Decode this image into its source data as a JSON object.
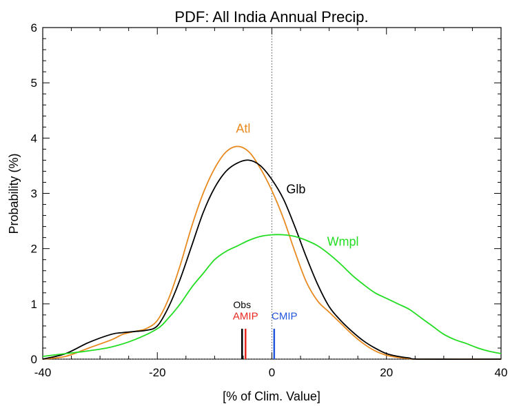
{
  "chart_data": {
    "type": "line",
    "title": "PDF: All India Annual Precip.",
    "xlabel": "[% of Clim. Value]",
    "ylabel": "Probability (%)",
    "xlim": [
      -40,
      40
    ],
    "ylim": [
      0,
      6
    ],
    "xticks": [
      -40,
      -20,
      0,
      20,
      40
    ],
    "yticks": [
      0,
      1,
      2,
      3,
      4,
      5,
      6
    ],
    "reference_lines": [
      {
        "axis": "x",
        "value": 0,
        "style": "dotted"
      },
      {
        "axis": "y",
        "value": 0,
        "style": "dotted"
      }
    ],
    "series": [
      {
        "name": "Atl",
        "color": "#e8891e",
        "label_at": [
          -5,
          4.1
        ],
        "points": [
          [
            -40,
            0.0
          ],
          [
            -36,
            0.05
          ],
          [
            -32,
            0.2
          ],
          [
            -28,
            0.35
          ],
          [
            -26,
            0.45
          ],
          [
            -24,
            0.5
          ],
          [
            -22,
            0.55
          ],
          [
            -20,
            0.7
          ],
          [
            -18,
            1.1
          ],
          [
            -16,
            1.7
          ],
          [
            -14,
            2.4
          ],
          [
            -12,
            3.0
          ],
          [
            -10,
            3.45
          ],
          [
            -8,
            3.75
          ],
          [
            -6,
            3.85
          ],
          [
            -4,
            3.75
          ],
          [
            -2,
            3.45
          ],
          [
            0,
            3.05
          ],
          [
            2,
            2.55
          ],
          [
            4,
            1.95
          ],
          [
            6,
            1.4
          ],
          [
            8,
            1.05
          ],
          [
            10,
            0.85
          ],
          [
            12,
            0.65
          ],
          [
            14,
            0.45
          ],
          [
            16,
            0.28
          ],
          [
            18,
            0.15
          ],
          [
            20,
            0.07
          ],
          [
            22,
            0.03
          ],
          [
            24,
            0.01
          ],
          [
            26,
            0.0
          ],
          [
            40,
            0.0
          ]
        ]
      },
      {
        "name": "Glb",
        "color": "#000000",
        "label_at": [
          4.2,
          3.0
        ],
        "points": [
          [
            -40,
            0.0
          ],
          [
            -36,
            0.1
          ],
          [
            -32,
            0.3
          ],
          [
            -28,
            0.45
          ],
          [
            -26,
            0.48
          ],
          [
            -24,
            0.5
          ],
          [
            -22,
            0.52
          ],
          [
            -20,
            0.6
          ],
          [
            -18,
            0.95
          ],
          [
            -16,
            1.45
          ],
          [
            -14,
            2.05
          ],
          [
            -12,
            2.65
          ],
          [
            -10,
            3.1
          ],
          [
            -8,
            3.4
          ],
          [
            -6,
            3.55
          ],
          [
            -4,
            3.6
          ],
          [
            -2,
            3.5
          ],
          [
            0,
            3.25
          ],
          [
            2,
            2.9
          ],
          [
            4,
            2.4
          ],
          [
            6,
            1.85
          ],
          [
            8,
            1.35
          ],
          [
            10,
            0.95
          ],
          [
            12,
            0.7
          ],
          [
            14,
            0.5
          ],
          [
            16,
            0.33
          ],
          [
            18,
            0.2
          ],
          [
            20,
            0.1
          ],
          [
            22,
            0.05
          ],
          [
            24,
            0.02
          ],
          [
            26,
            0.0
          ],
          [
            40,
            0.0
          ]
        ]
      },
      {
        "name": "Wmpl",
        "color": "#22dd22",
        "label_at": [
          12.4,
          2.05
        ],
        "points": [
          [
            -40,
            0.05
          ],
          [
            -36,
            0.1
          ],
          [
            -32,
            0.15
          ],
          [
            -28,
            0.22
          ],
          [
            -24,
            0.35
          ],
          [
            -20,
            0.55
          ],
          [
            -18,
            0.75
          ],
          [
            -16,
            1.0
          ],
          [
            -14,
            1.3
          ],
          [
            -12,
            1.55
          ],
          [
            -10,
            1.8
          ],
          [
            -8,
            1.95
          ],
          [
            -6,
            2.05
          ],
          [
            -4,
            2.15
          ],
          [
            -2,
            2.22
          ],
          [
            0,
            2.25
          ],
          [
            2,
            2.25
          ],
          [
            4,
            2.22
          ],
          [
            6,
            2.15
          ],
          [
            8,
            2.05
          ],
          [
            10,
            1.9
          ],
          [
            12,
            1.72
          ],
          [
            14,
            1.52
          ],
          [
            16,
            1.35
          ],
          [
            18,
            1.2
          ],
          [
            20,
            1.1
          ],
          [
            22,
            1.0
          ],
          [
            24,
            0.9
          ],
          [
            26,
            0.75
          ],
          [
            28,
            0.6
          ],
          [
            30,
            0.45
          ],
          [
            32,
            0.35
          ],
          [
            34,
            0.28
          ],
          [
            36,
            0.2
          ],
          [
            38,
            0.14
          ],
          [
            40,
            0.1
          ]
        ]
      }
    ],
    "markers": [
      {
        "name": "Obs",
        "x": -5.2,
        "height": 0.55,
        "color": "#000000",
        "label": "Obs",
        "label_at": [
          -5.2,
          0.92
        ]
      },
      {
        "name": "AMIP",
        "x": -4.6,
        "height": 0.55,
        "color": "#e8281e",
        "label": "AMIP",
        "label_at": [
          -4.6,
          0.72
        ]
      },
      {
        "name": "CMIP",
        "x": 0.4,
        "height": 0.55,
        "color": "#2255dd",
        "label": "CMIP",
        "label_at": [
          2.2,
          0.72
        ]
      }
    ]
  }
}
